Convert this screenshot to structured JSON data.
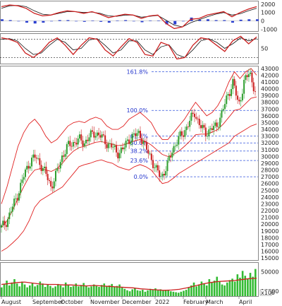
{
  "colors": {
    "up": "#2e9e2e",
    "down": "#cc2020",
    "band": "#e02020",
    "fib": "#3355dd",
    "volume": "#33bb33",
    "macd_hist": "#2a3fd0",
    "grid": "#999999",
    "panel_border": "#888888"
  },
  "chart_data": [
    {
      "type": "bar",
      "panel": "macd",
      "y_ticks": [
        "2000",
        "1000",
        "0",
        "-1000"
      ],
      "ylim": [
        -1200,
        2400
      ],
      "line_values": [
        1700,
        1900,
        1800,
        1500,
        900,
        600,
        700,
        1000,
        1200,
        1100,
        900,
        1100,
        800,
        400,
        600,
        800,
        700,
        300,
        600,
        700,
        -300,
        -900,
        -700,
        200,
        300,
        700,
        900,
        1100,
        500,
        1000,
        1400,
        1700
      ],
      "signal_values": [
        1500,
        1800,
        1850,
        1700,
        1200,
        800,
        700,
        900,
        1100,
        1100,
        1000,
        1050,
        900,
        600,
        550,
        700,
        700,
        450,
        550,
        650,
        100,
        -500,
        -700,
        -200,
        150,
        500,
        800,
        1000,
        700,
        850,
        1200,
        1500
      ],
      "hist_values": [
        200,
        100,
        -50,
        -200,
        -300,
        -200,
        0,
        100,
        100,
        0,
        -100,
        50,
        -100,
        -200,
        50,
        100,
        0,
        -150,
        50,
        50,
        -400,
        -400,
        0,
        400,
        150,
        200,
        100,
        100,
        -200,
        150,
        200,
        200
      ]
    },
    {
      "type": "line",
      "panel": "oscillator",
      "y_ticks": [
        "50"
      ],
      "ylim": [
        0,
        100
      ],
      "ref_lines": [
        80,
        20
      ],
      "series": [
        {
          "values": [
            85,
            80,
            70,
            35,
            20,
            40,
            70,
            85,
            60,
            30,
            60,
            85,
            80,
            45,
            25,
            55,
            82,
            70,
            30,
            25,
            70,
            60,
            15,
            20,
            60,
            85,
            80,
            60,
            40,
            75,
            90,
            65,
            88
          ]
        },
        {
          "values": [
            80,
            82,
            75,
            50,
            30,
            35,
            60,
            80,
            70,
            45,
            50,
            78,
            82,
            60,
            35,
            45,
            75,
            75,
            45,
            30,
            55,
            62,
            30,
            20,
            45,
            75,
            82,
            70,
            50,
            65,
            85,
            75,
            82
          ]
        }
      ]
    },
    {
      "type": "candlestick",
      "panel": "price",
      "y_ticks": [
        "43000",
        "42000",
        "41000",
        "40000",
        "39000",
        "38000",
        "37000",
        "36000",
        "35000",
        "34000",
        "33000",
        "32000",
        "31000",
        "30000",
        "29000",
        "28000",
        "27000",
        "26000",
        "25000",
        "24000",
        "23000",
        "22000",
        "21000",
        "20000",
        "19000",
        "18000",
        "17000",
        "16000",
        "15000"
      ],
      "ylim": [
        14700,
        43400
      ],
      "fib_levels": [
        {
          "label": "161.8%",
          "value": 42500
        },
        {
          "label": "100.0%",
          "value": 36800
        },
        {
          "label": "61.8%",
          "value": 33000
        },
        {
          "label": "50.0%",
          "value": 32000
        },
        {
          "label": "38.2%",
          "value": 30800
        },
        {
          "label": "23.6%",
          "value": 29400
        },
        {
          "label": "0.0%",
          "value": 27000
        }
      ],
      "close_path": [
        19500,
        20500,
        22500,
        24500,
        27000,
        29000,
        30000,
        29000,
        27500,
        25500,
        27500,
        30000,
        31500,
        32000,
        32500,
        32000,
        33000,
        33500,
        33000,
        32000,
        31500,
        30500,
        31000,
        32500,
        33000,
        33500,
        31500,
        30000,
        28000,
        27000,
        28500,
        31000,
        32500,
        33500,
        35000,
        36500,
        34500,
        33500,
        34000,
        34500,
        36500,
        39000,
        41000,
        37500,
        41000,
        42500,
        39500
      ],
      "upper_band": [
        23000,
        25500,
        28500,
        31500,
        33500,
        34800,
        35500,
        34500,
        33000,
        32000,
        32500,
        33500,
        34500,
        35000,
        35200,
        35000,
        35500,
        35800,
        35500,
        34500,
        34000,
        34000,
        34500,
        35500,
        36000,
        36500,
        35800,
        35000,
        33500,
        32500,
        32500,
        33500,
        34500,
        35500,
        36800,
        38000,
        37000,
        36000,
        36500,
        37500,
        39000,
        41000,
        42500,
        41500,
        42500,
        43000,
        42000
      ],
      "middle_band": [
        19500,
        20500,
        22000,
        23800,
        25500,
        27000,
        28000,
        28200,
        28000,
        27800,
        28200,
        29000,
        30000,
        30800,
        31300,
        31500,
        31800,
        32100,
        32200,
        32000,
        31800,
        31600,
        31700,
        32000,
        32300,
        32500,
        32200,
        31700,
        31000,
        30300,
        30000,
        30300,
        30800,
        31500,
        32300,
        33200,
        33300,
        33300,
        33600,
        34000,
        34800,
        35800,
        36800,
        37000,
        37800,
        38600,
        38800
      ],
      "lower_band": [
        16000,
        16500,
        17200,
        18000,
        19000,
        20500,
        22500,
        23500,
        24000,
        24500,
        25000,
        25500,
        26500,
        27500,
        28500,
        28800,
        29000,
        29300,
        29500,
        29200,
        29000,
        28500,
        28200,
        28000,
        28500,
        28800,
        28500,
        28000,
        27000,
        26000,
        26200,
        26800,
        27500,
        28000,
        28500,
        29000,
        29500,
        30000,
        30500,
        31000,
        31500,
        32000,
        33000,
        33500,
        34000,
        34500,
        34800
      ]
    },
    {
      "type": "bar",
      "panel": "volume",
      "y_ticks": [
        "50000",
        "10000"
      ],
      "multiplier_label": "x100",
      "ylim": [
        0,
        70000
      ],
      "values": [
        18000,
        25000,
        32000,
        22000,
        28000,
        35000,
        26000,
        20000,
        30000,
        24000,
        18000,
        22000,
        27000,
        20000,
        23000,
        30000,
        26000,
        19000,
        24000,
        21000,
        17000,
        20000,
        25000,
        22000,
        18000,
        28000,
        24000,
        19000,
        21000,
        26000,
        20000,
        23000,
        27000,
        22000,
        18000,
        20000,
        24000,
        21000,
        19000,
        23000,
        26000,
        20000,
        22000,
        25000,
        19000,
        21000,
        24000,
        18000,
        15000,
        12000,
        10000,
        14000,
        16000,
        12000,
        11000,
        13000,
        9000,
        12000,
        15000,
        13000,
        16000,
        12000,
        14000,
        11000,
        13000,
        12000,
        10000,
        9000,
        8000,
        7000,
        9000,
        11000,
        13000,
        18000,
        22000,
        28000,
        20000,
        24000,
        30000,
        26000,
        22000,
        35000,
        28000,
        32000,
        40000,
        30000,
        24000,
        22000,
        28000,
        33000,
        36000,
        30000,
        45000,
        38000,
        52000,
        42000,
        36000,
        48000,
        40000,
        56000
      ],
      "average_path": [
        24000,
        26000,
        28000,
        29000,
        27000,
        25000,
        24000,
        24000,
        23000,
        23000,
        22000,
        21000,
        22000,
        21000,
        20000,
        19000,
        18000,
        17000,
        15000,
        14000,
        13000,
        12000,
        12500,
        14000,
        17000,
        21000,
        25000,
        28000,
        30000,
        31000,
        32000,
        34000,
        36000,
        37000
      ]
    }
  ],
  "x_axis": {
    "labels": [
      "August",
      "September",
      "October",
      "November",
      "December",
      "2022",
      "February",
      "March",
      "April"
    ]
  }
}
